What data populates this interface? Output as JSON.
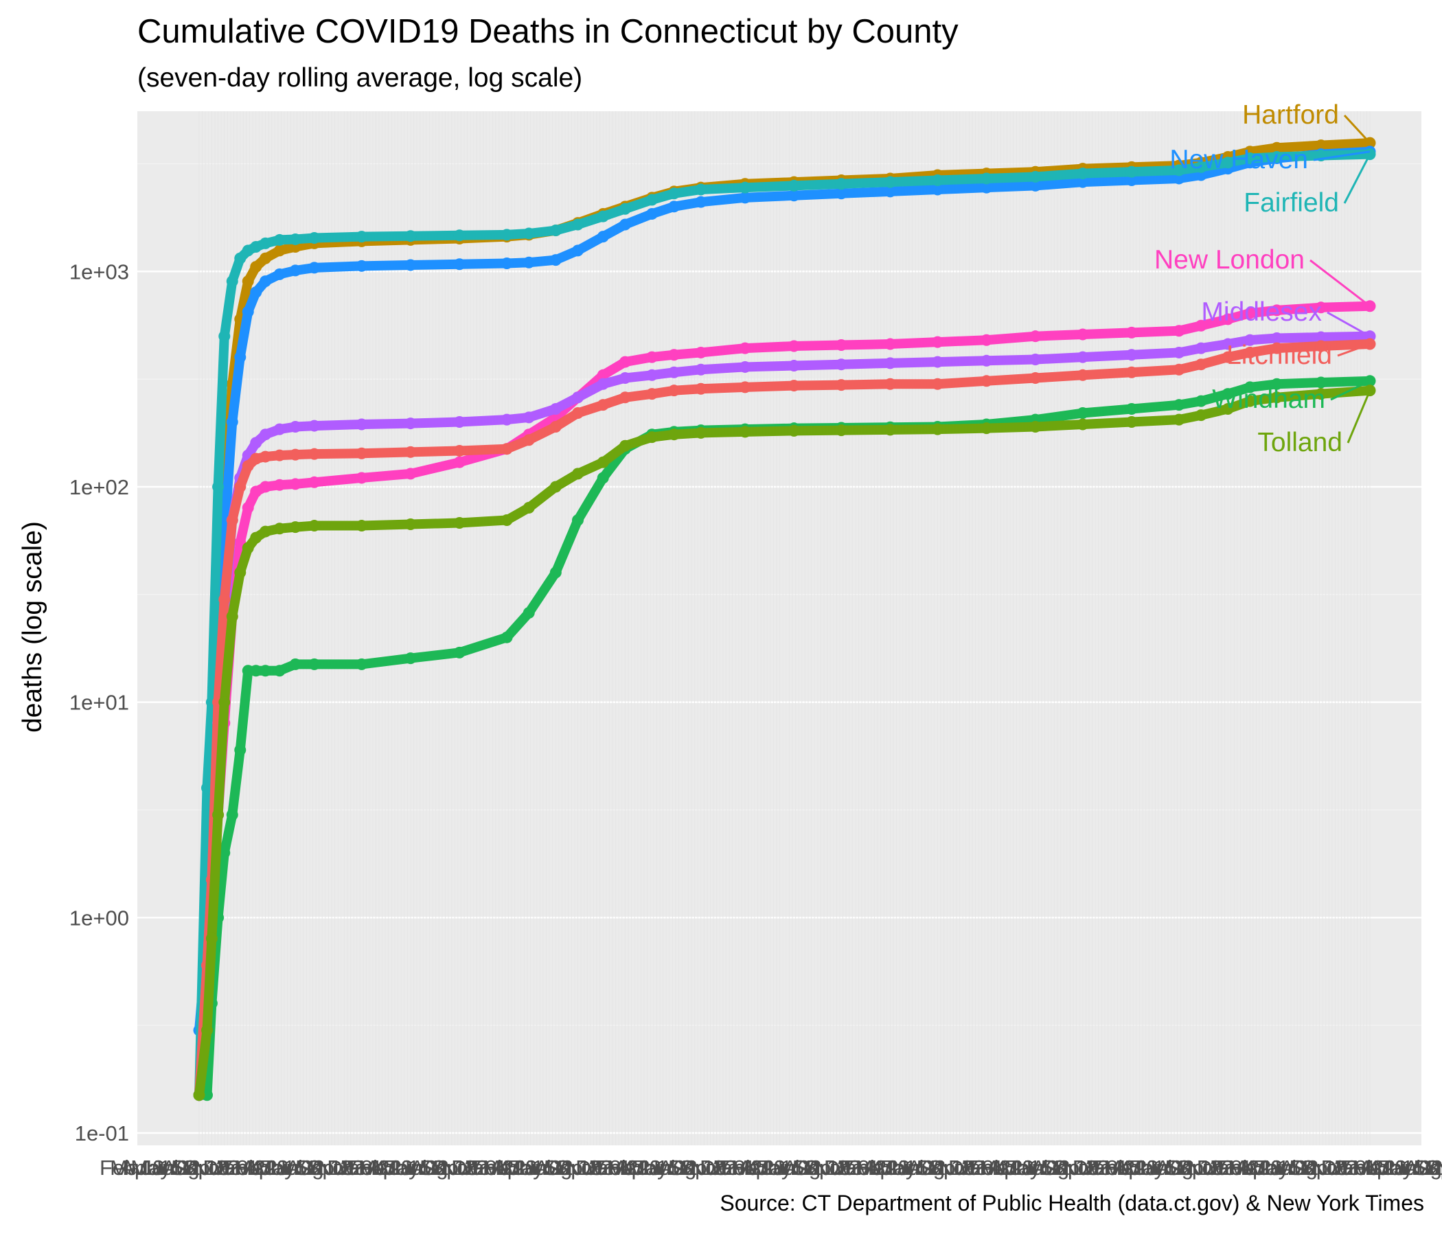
{
  "chart_data": {
    "type": "line",
    "title": "Cumulative COVID19 Deaths in Connecticut by County",
    "subtitle": "(seven-day rolling average, log scale)",
    "ylabel": "deaths (log scale)",
    "xlabel": "",
    "caption": "Source: CT Department of Public Health (data.ct.gov) & New York Times",
    "y_scale": "log10",
    "ylim": [
      0.1,
      5000
    ],
    "y_ticks": [
      {
        "value": 0.1,
        "label": "1e-01"
      },
      {
        "value": 1,
        "label": "1e+00"
      },
      {
        "value": 10,
        "label": "1e+01"
      },
      {
        "value": 100,
        "label": "1e+02"
      },
      {
        "value": 1000,
        "label": "1e+03"
      }
    ],
    "x_tick_labels_note": "x-axis tick labels are overlapping and illegible",
    "x": [
      "2020-03-20",
      "2020-03-25",
      "2020-03-28",
      "2020-04-01",
      "2020-04-05",
      "2020-04-10",
      "2020-04-15",
      "2020-04-20",
      "2020-04-25",
      "2020-05-01",
      "2020-05-10",
      "2020-05-20",
      "2020-06-01",
      "2020-07-01",
      "2020-08-01",
      "2020-09-01",
      "2020-10-01",
      "2020-10-15",
      "2020-11-01",
      "2020-11-15",
      "2020-12-01",
      "2020-12-15",
      "2021-01-01",
      "2021-01-15",
      "2021-02-01",
      "2021-03-01",
      "2021-04-01",
      "2021-05-01",
      "2021-06-01",
      "2021-07-01",
      "2021-08-01",
      "2021-09-01",
      "2021-10-01",
      "2021-11-01",
      "2021-12-01",
      "2021-12-15",
      "2022-01-01",
      "2022-01-15",
      "2022-02-01",
      "2022-03-01",
      "2022-04-01"
    ],
    "series": [
      {
        "name": "Hartford",
        "color": "#C08B00",
        "values": [
          0.15,
          1.5,
          3,
          20,
          100,
          300,
          600,
          900,
          1050,
          1150,
          1250,
          1300,
          1350,
          1380,
          1400,
          1420,
          1450,
          1480,
          1550,
          1680,
          1850,
          2000,
          2200,
          2350,
          2450,
          2550,
          2600,
          2650,
          2700,
          2800,
          2850,
          2900,
          3000,
          3050,
          3100,
          3200,
          3400,
          3600,
          3750,
          3850,
          3950
        ]
      },
      {
        "name": "New Haven",
        "color": "#1E90FF",
        "values": [
          0.3,
          0.8,
          2,
          12,
          60,
          200,
          400,
          650,
          800,
          900,
          970,
          1010,
          1040,
          1060,
          1070,
          1080,
          1090,
          1100,
          1130,
          1250,
          1450,
          1650,
          1850,
          2000,
          2100,
          2200,
          2250,
          2300,
          2350,
          2400,
          2450,
          2500,
          2600,
          2650,
          2700,
          2800,
          3000,
          3200,
          3350,
          3500,
          3600
        ]
      },
      {
        "name": "Fairfield",
        "color": "#1FB5B5",
        "values": [
          0.15,
          4,
          10,
          100,
          500,
          900,
          1150,
          1250,
          1300,
          1350,
          1400,
          1410,
          1430,
          1450,
          1460,
          1470,
          1480,
          1500,
          1550,
          1650,
          1800,
          1950,
          2150,
          2300,
          2400,
          2450,
          2500,
          2550,
          2600,
          2650,
          2700,
          2750,
          2850,
          2900,
          2950,
          3050,
          3200,
          3350,
          3400,
          3450,
          3500
        ]
      },
      {
        "name": "New London",
        "color": "#FF40C0",
        "values": [
          0.15,
          0.4,
          1,
          3,
          8,
          25,
          55,
          80,
          95,
          100,
          102,
          103,
          105,
          110,
          115,
          130,
          150,
          175,
          210,
          260,
          330,
          380,
          400,
          410,
          420,
          440,
          450,
          455,
          460,
          470,
          480,
          500,
          510,
          520,
          530,
          560,
          600,
          640,
          660,
          680,
          690
        ]
      },
      {
        "name": "Middlesex",
        "color": "#B05CFF",
        "values": [
          0.15,
          0.6,
          1.5,
          8,
          25,
          70,
          110,
          140,
          160,
          175,
          185,
          190,
          192,
          195,
          197,
          200,
          205,
          210,
          230,
          260,
          300,
          320,
          330,
          340,
          350,
          360,
          365,
          370,
          375,
          380,
          385,
          390,
          400,
          410,
          420,
          440,
          460,
          480,
          490,
          495,
          500
        ]
      },
      {
        "name": "Litchfield",
        "color": "#F25F5C",
        "values": [
          0.15,
          0.6,
          1.5,
          10,
          30,
          70,
          100,
          125,
          135,
          138,
          140,
          141,
          142,
          143,
          145,
          147,
          150,
          165,
          190,
          220,
          240,
          260,
          270,
          280,
          285,
          290,
          295,
          297,
          300,
          300,
          310,
          320,
          330,
          340,
          350,
          370,
          400,
          420,
          440,
          450,
          460
        ]
      },
      {
        "name": "Windham",
        "color": "#1DB856",
        "values": [
          0.15,
          0.15,
          0.4,
          1,
          2,
          3,
          6,
          14,
          14,
          14,
          14,
          15,
          15,
          15,
          16,
          17,
          20,
          26,
          40,
          70,
          110,
          150,
          175,
          180,
          183,
          185,
          187,
          188,
          189,
          190,
          195,
          205,
          220,
          230,
          240,
          250,
          270,
          290,
          300,
          305,
          310
        ]
      },
      {
        "name": "Tolland",
        "color": "#6EA50D",
        "values": [
          0.15,
          0.3,
          0.8,
          3,
          10,
          25,
          40,
          52,
          58,
          62,
          64,
          65,
          66,
          66,
          67,
          68,
          70,
          80,
          100,
          115,
          130,
          155,
          170,
          175,
          178,
          180,
          182,
          183,
          184,
          185,
          187,
          190,
          195,
          200,
          205,
          215,
          230,
          250,
          260,
          270,
          280
        ]
      }
    ]
  }
}
